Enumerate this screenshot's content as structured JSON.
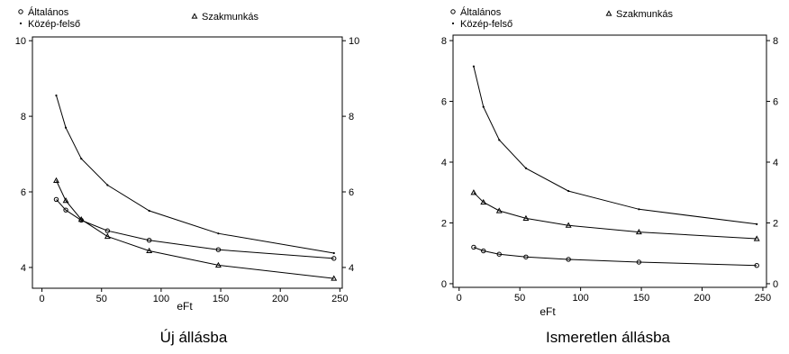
{
  "chart_data": [
    {
      "type": "line",
      "title": "Új állásba",
      "xlabel": "eFt",
      "ylabel": "",
      "xlim": [
        -8,
        252
      ],
      "ylim": [
        3.45,
        10.1
      ],
      "xticks": [
        0,
        50,
        100,
        150,
        200,
        250
      ],
      "yticks": [
        4,
        6,
        8,
        10
      ],
      "grid": false,
      "legend_position": "top",
      "x": [
        12,
        20,
        33,
        55,
        90,
        148,
        245
      ],
      "series": [
        {
          "name": "Általános",
          "marker": "circle",
          "values": [
            5.8,
            5.52,
            5.25,
            4.97,
            4.72,
            4.47,
            4.24
          ]
        },
        {
          "name": "Közép-felső",
          "marker": "dot",
          "values": [
            8.55,
            7.7,
            6.88,
            6.18,
            5.5,
            4.9,
            4.38
          ]
        },
        {
          "name": "Szakmunkás",
          "marker": "triangle",
          "values": [
            6.3,
            5.77,
            5.27,
            4.82,
            4.44,
            4.06,
            3.71
          ]
        }
      ]
    },
    {
      "type": "line",
      "title": "Ismeretlen állásba",
      "xlabel": "eFt",
      "ylabel": "",
      "xlim": [
        -5,
        253
      ],
      "ylim": [
        -0.12,
        8.18
      ],
      "xticks": [
        0,
        50,
        100,
        150,
        200,
        250
      ],
      "yticks": [
        0,
        2,
        4,
        6,
        8
      ],
      "grid": false,
      "legend_position": "top",
      "x": [
        12,
        20,
        33,
        55,
        90,
        148,
        245
      ],
      "series": [
        {
          "name": "Általános",
          "marker": "circle",
          "values": [
            1.2,
            1.08,
            0.97,
            0.88,
            0.8,
            0.71,
            0.6
          ]
        },
        {
          "name": "Közép-felső",
          "marker": "dot",
          "values": [
            7.15,
            5.82,
            4.73,
            3.8,
            3.05,
            2.45,
            1.96
          ]
        },
        {
          "name": "Szakmunkás",
          "marker": "triangle",
          "values": [
            3.0,
            2.68,
            2.4,
            2.15,
            1.92,
            1.7,
            1.48
          ]
        }
      ]
    }
  ]
}
